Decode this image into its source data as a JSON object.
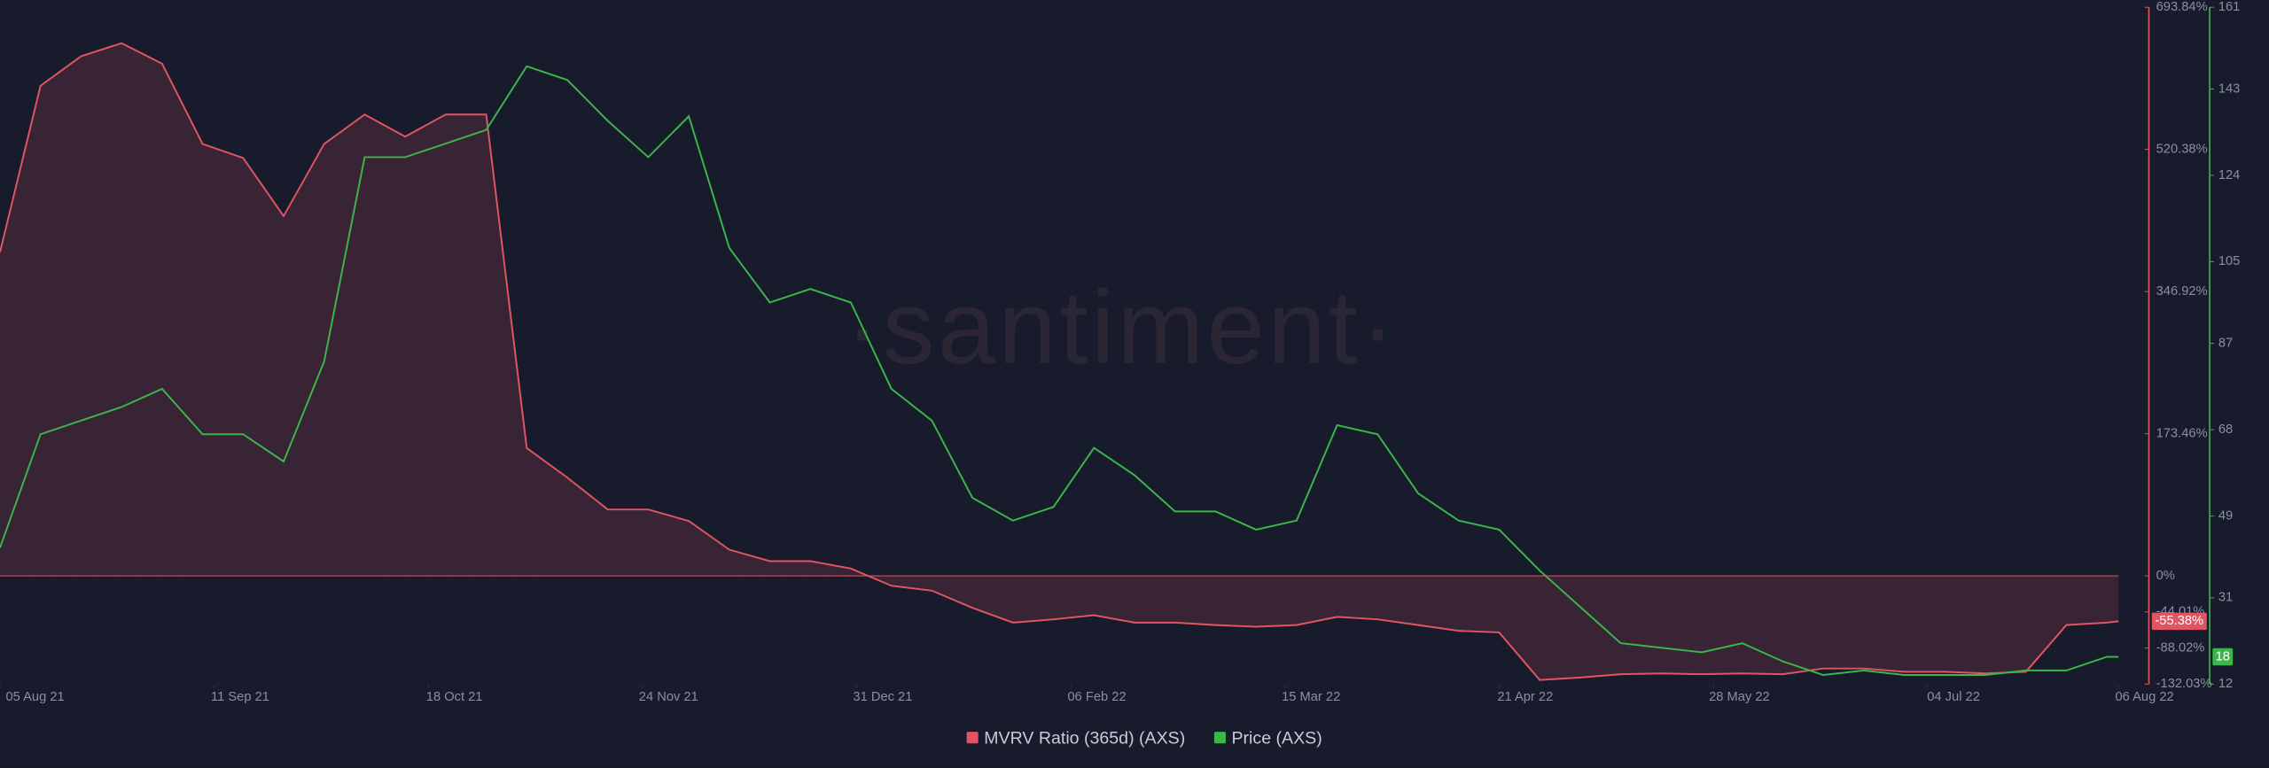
{
  "chart_data": {
    "type": "line",
    "watermark": "·santiment·",
    "x": [
      "2021-08-05",
      "2021-08-12",
      "2021-08-19",
      "2021-08-26",
      "2021-09-02",
      "2021-09-09",
      "2021-09-16",
      "2021-09-23",
      "2021-09-30",
      "2021-10-07",
      "2021-10-14",
      "2021-10-21",
      "2021-10-28",
      "2021-11-04",
      "2021-11-11",
      "2021-11-18",
      "2021-11-25",
      "2021-12-02",
      "2021-12-09",
      "2021-12-16",
      "2021-12-23",
      "2021-12-30",
      "2022-01-06",
      "2022-01-13",
      "2022-01-20",
      "2022-01-27",
      "2022-02-03",
      "2022-02-10",
      "2022-02-17",
      "2022-02-24",
      "2022-03-03",
      "2022-03-10",
      "2022-03-17",
      "2022-03-24",
      "2022-03-31",
      "2022-04-07",
      "2022-04-14",
      "2022-04-21",
      "2022-04-28",
      "2022-05-05",
      "2022-05-12",
      "2022-05-19",
      "2022-05-26",
      "2022-06-02",
      "2022-06-09",
      "2022-06-16",
      "2022-06-23",
      "2022-06-30",
      "2022-07-07",
      "2022-07-14",
      "2022-07-21",
      "2022-07-28",
      "2022-08-04",
      "2022-08-06"
    ],
    "xlim": [
      "2021-08-05",
      "2022-08-06"
    ],
    "xticks": [
      {
        "value": "2021-08-05",
        "label": "05 Aug 21"
      },
      {
        "value": "2021-09-11",
        "label": "11 Sep 21"
      },
      {
        "value": "2021-10-18",
        "label": "18 Oct 21"
      },
      {
        "value": "2021-11-24",
        "label": "24 Nov 21"
      },
      {
        "value": "2021-12-31",
        "label": "31 Dec 21"
      },
      {
        "value": "2022-02-06",
        "label": "06 Feb 22"
      },
      {
        "value": "2022-03-15",
        "label": "15 Mar 22"
      },
      {
        "value": "2022-04-21",
        "label": "21 Apr 22"
      },
      {
        "value": "2022-05-28",
        "label": "28 May 22"
      },
      {
        "value": "2022-07-04",
        "label": "04 Jul 22"
      },
      {
        "value": "2022-08-06",
        "label": "06 Aug 22"
      }
    ],
    "ylim": [
      -132.03,
      693.84
    ],
    "yticks": [
      {
        "value": 693.84,
        "label": "693.84%"
      },
      {
        "value": 520.38,
        "label": "520.38%"
      },
      {
        "value": 346.92,
        "label": "346.92%"
      },
      {
        "value": 173.46,
        "label": "173.46%"
      },
      {
        "value": 0,
        "label": "0%"
      },
      {
        "value": -44.01,
        "label": "-44.01%"
      },
      {
        "value": -88.02,
        "label": "-88.02%"
      },
      {
        "value": -132.03,
        "label": "-132.03%"
      }
    ],
    "y2lim": [
      12,
      161
    ],
    "y2ticks": [
      161,
      143,
      124,
      105,
      87,
      68,
      49,
      31,
      12
    ],
    "series": [
      {
        "name": "MVRV Ratio (365d) (AXS)",
        "color": "#e05563",
        "area": true,
        "last_value": -55.38,
        "last_value_label": "-55.38%",
        "values": [
          395,
          598,
          634,
          650,
          625,
          527,
          510,
          439,
          527,
          563,
          536,
          563,
          563,
          156,
          120,
          81,
          81,
          67,
          32,
          18,
          18,
          9,
          -12,
          -18,
          -39,
          -57,
          -53,
          -48,
          -57,
          -57,
          -60,
          -62,
          -60,
          -50,
          -53,
          -60,
          -67,
          -69,
          -127,
          -124,
          -120,
          -119,
          -120,
          -119,
          -120,
          -113,
          -113,
          -117,
          -117,
          -119,
          -117,
          -60,
          -57,
          -55.38
        ]
      },
      {
        "name": "Price (AXS)",
        "color": "#3cb54a",
        "axis": "y2",
        "last_value": 18,
        "values": [
          42,
          67,
          70,
          73,
          77,
          67,
          67,
          61,
          83,
          128,
          128,
          131,
          134,
          148,
          145,
          136,
          128,
          137,
          108,
          96,
          99,
          96,
          77,
          70,
          53,
          48,
          51,
          64,
          58,
          50,
          50,
          46,
          48,
          69,
          67,
          54,
          48,
          46,
          37,
          29,
          21,
          20,
          19,
          21,
          17,
          14,
          15,
          14,
          14,
          14,
          15,
          15,
          18,
          18
        ]
      }
    ]
  }
}
